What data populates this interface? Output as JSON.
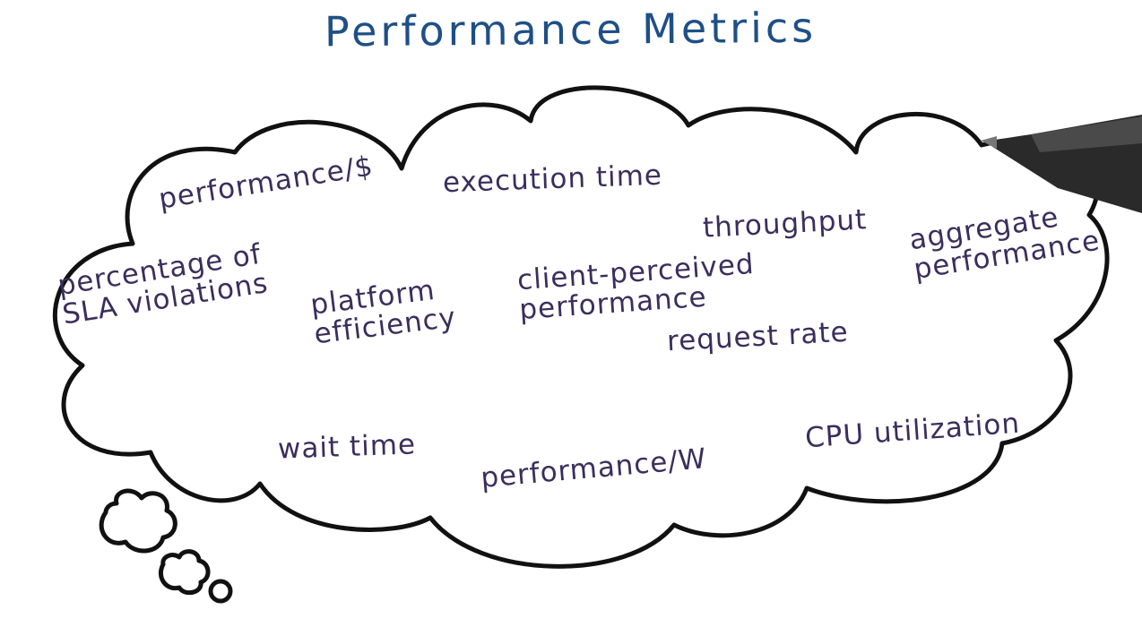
{
  "title": "Performance Metrics",
  "colors": {
    "title": "#1f4f86",
    "ink": "#3a2f5c",
    "outline": "#111111",
    "pen": "#2c2c2c"
  },
  "metrics": [
    {
      "id": "performance-per-dollar",
      "text": "performance/$"
    },
    {
      "id": "execution-time",
      "text": "execution time"
    },
    {
      "id": "throughput",
      "text": "throughput"
    },
    {
      "id": "aggregate-performance",
      "text": "aggregate\nperformance"
    },
    {
      "id": "percentage-sla-violations",
      "text": "percentage of\nSLA violations"
    },
    {
      "id": "platform-efficiency",
      "text": "platform\nefficiency"
    },
    {
      "id": "client-perceived-performance",
      "text": "client-perceived\nperformance"
    },
    {
      "id": "request-rate",
      "text": "request rate"
    },
    {
      "id": "wait-time",
      "text": "wait time"
    },
    {
      "id": "performance-per-watt",
      "text": "performance/W"
    },
    {
      "id": "cpu-utilization",
      "text": "CPU utilization"
    }
  ]
}
